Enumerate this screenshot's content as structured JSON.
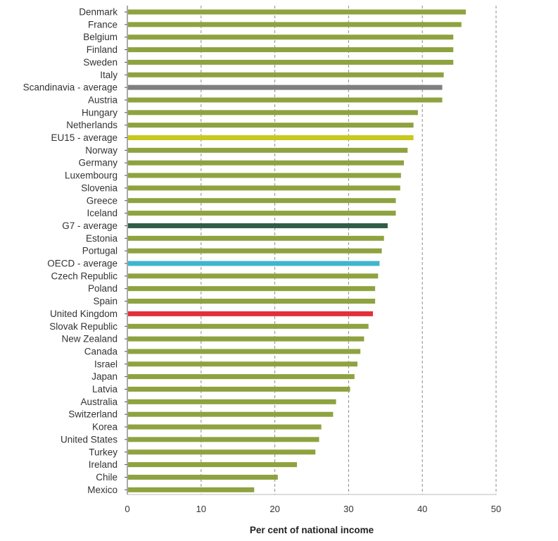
{
  "chart_data": {
    "type": "bar",
    "orientation": "horizontal",
    "xlabel": "Per cent of national income",
    "ylabel": "",
    "xlim": [
      0,
      50
    ],
    "xticks": [
      0,
      10,
      20,
      30,
      40,
      50
    ],
    "grid": "vertical dashed",
    "colors": {
      "default": "#8ea23f",
      "Scandinavia - average": "#7f7f7f",
      "EU15 - average": "#c8c81e",
      "G7 - average": "#2f5d46",
      "OECD - average": "#41b4cf",
      "United Kingdom": "#e2303a"
    },
    "categories": [
      "Denmark",
      "France",
      "Belgium",
      "Finland",
      "Sweden",
      "Italy",
      "Scandinavia - average",
      "Austria",
      "Hungary",
      "Netherlands",
      "EU15 - average",
      "Norway",
      "Germany",
      "Luxembourg",
      "Slovenia",
      "Greece",
      "Iceland",
      "G7 - average",
      "Estonia",
      "Portugal",
      "OECD - average",
      "Czech Republic",
      "Poland",
      "Spain",
      "United Kingdom",
      "Slovak Republic",
      "New Zealand",
      "Canada",
      "Israel",
      "Japan",
      "Latvia",
      "Australia",
      "Switzerland",
      "Korea",
      "United States",
      "Turkey",
      "Ireland",
      "Chile",
      "Mexico"
    ],
    "values": [
      45.9,
      45.3,
      44.2,
      44.2,
      44.2,
      42.9,
      42.7,
      42.7,
      39.4,
      38.8,
      38.8,
      38.0,
      37.5,
      37.1,
      37.0,
      36.4,
      36.4,
      35.3,
      34.8,
      34.5,
      34.2,
      34.0,
      33.6,
      33.6,
      33.3,
      32.7,
      32.1,
      31.6,
      31.2,
      30.8,
      30.2,
      28.3,
      27.9,
      26.3,
      26.0,
      25.5,
      23.0,
      20.4,
      17.2
    ]
  }
}
